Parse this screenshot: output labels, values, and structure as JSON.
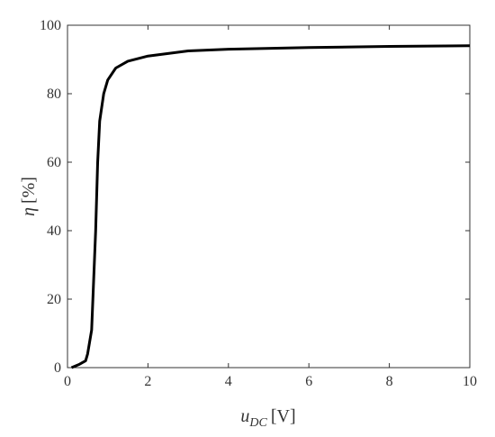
{
  "chart_data": {
    "type": "line",
    "xlabel": {
      "symbol": "u",
      "subscript": "DC",
      "unit": "[V]"
    },
    "ylabel": {
      "symbol": "η",
      "unit": "[%]"
    },
    "x": [
      0.1,
      0.3,
      0.45,
      0.5,
      0.6,
      0.7,
      0.75,
      0.8,
      0.9,
      1.0,
      1.2,
      1.5,
      2,
      3,
      4,
      6,
      8,
      10
    ],
    "series": [
      {
        "color": "#000000",
        "values": [
          0,
          1,
          2,
          4,
          11,
          40,
          60,
          72,
          80,
          84,
          87.5,
          89.5,
          91,
          92.5,
          93,
          93.5,
          93.8,
          94
        ]
      }
    ],
    "xlim": [
      0,
      10
    ],
    "xticks": [
      0,
      2,
      4,
      6,
      8,
      10
    ],
    "ylim": [
      0,
      100
    ],
    "yticks": [
      0,
      20,
      40,
      60,
      80,
      100
    ],
    "grid": false,
    "box": true
  }
}
